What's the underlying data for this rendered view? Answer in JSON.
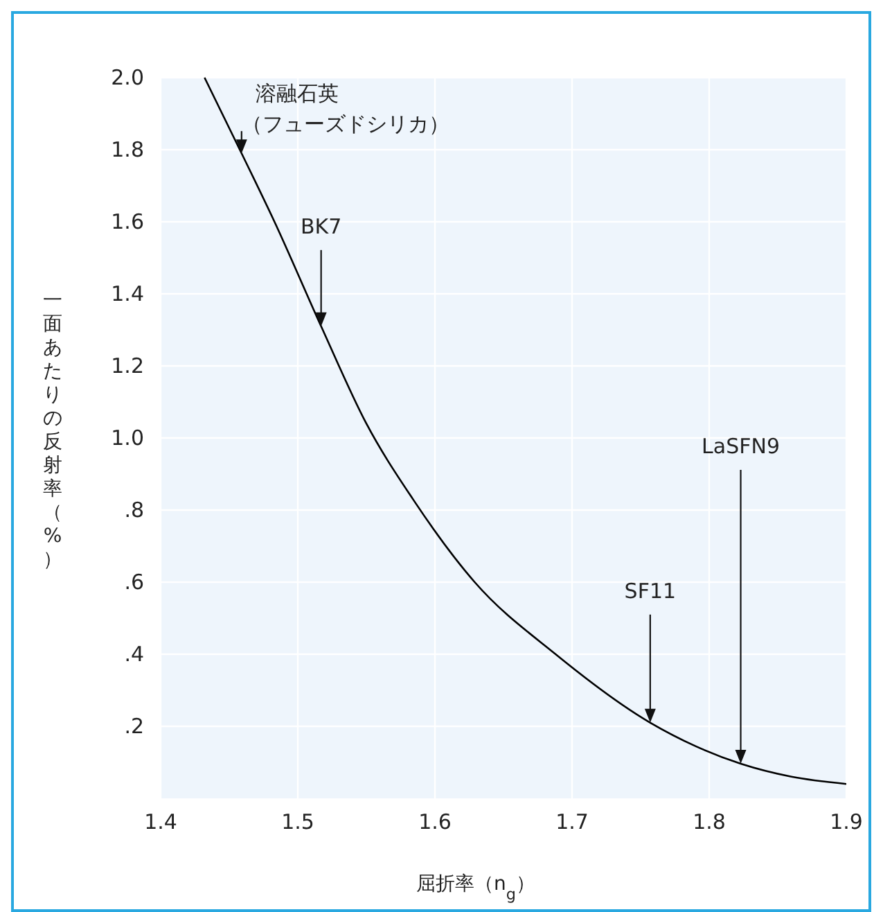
{
  "chart_data": {
    "type": "line",
    "xlabel": "屈折率（n$_{g}$）",
    "ylabel": "一面あたりの反射率（%）",
    "x": [
      1.432,
      1.459,
      1.483,
      1.517,
      1.55,
      1.584,
      1.629,
      1.688,
      1.757,
      1.79,
      1.823,
      1.86,
      1.9
    ],
    "series": [
      {
        "color": "#000000",
        "values": [
          2.0,
          1.79,
          1.6,
          1.31,
          1.04,
          0.83,
          0.6,
          0.4,
          0.21,
          0.145,
          0.096,
          0.06,
          0.04
        ]
      }
    ],
    "xlim": [
      1.4,
      1.9
    ],
    "xticks": [
      1.4,
      1.5,
      1.6,
      1.7,
      1.8,
      1.9
    ],
    "ylim": [
      0,
      2.0
    ],
    "yticks": [
      {
        "value": 0.2,
        "label": ".2"
      },
      {
        "value": 0.4,
        "label": ".4"
      },
      {
        "value": 0.6,
        "label": ".6"
      },
      {
        "value": 0.8,
        "label": ".8"
      },
      {
        "value": 1.0,
        "label": "1.0"
      },
      {
        "value": 1.2,
        "label": "1.2"
      },
      {
        "value": 1.4,
        "label": "1.4"
      },
      {
        "value": 1.6,
        "label": "1.6"
      },
      {
        "value": 1.8,
        "label": "1.8"
      },
      {
        "value": 2.0,
        "label": "2.0"
      }
    ],
    "grid": true,
    "marker": "none",
    "line_style": "solid",
    "annotations": [
      {
        "text": "溶融石英（フューズドシリカ）",
        "x": 1.459,
        "y": 1.79
      },
      {
        "text": "BK7",
        "x": 1.517,
        "y": 1.31
      },
      {
        "text": "SF11",
        "x": 1.757,
        "y": 0.21
      },
      {
        "text": "LaSFN9",
        "x": 1.823,
        "y": 0.096
      }
    ]
  }
}
